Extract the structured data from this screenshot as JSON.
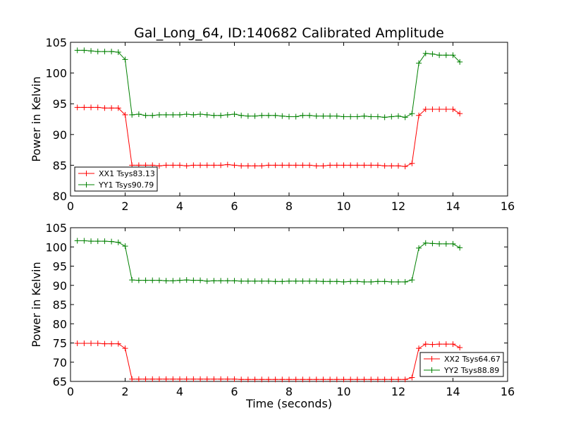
{
  "chart_data": [
    {
      "type": "line",
      "title": "Gal_Long_64, ID:140682 Calibrated Amplitude",
      "xlabel": "",
      "ylabel": "Power in Kelvin",
      "xlim": [
        0,
        16
      ],
      "ylim": [
        80,
        105
      ],
      "xticks": [
        0,
        2,
        4,
        6,
        8,
        10,
        12,
        14,
        16
      ],
      "yticks": [
        80,
        85,
        90,
        95,
        100,
        105
      ],
      "legend_position": "lower-left",
      "x": [
        0.25,
        0.5,
        0.75,
        1.0,
        1.25,
        1.5,
        1.75,
        2.0,
        2.25,
        2.5,
        2.75,
        3.0,
        3.25,
        3.5,
        3.75,
        4.0,
        4.25,
        4.5,
        4.75,
        5.0,
        5.25,
        5.5,
        5.75,
        6.0,
        6.25,
        6.5,
        6.75,
        7.0,
        7.25,
        7.5,
        7.75,
        8.0,
        8.25,
        8.5,
        8.75,
        9.0,
        9.25,
        9.5,
        9.75,
        10.0,
        10.25,
        10.5,
        10.75,
        11.0,
        11.25,
        11.5,
        11.75,
        12.0,
        12.25,
        12.5,
        12.75,
        13.0,
        13.25,
        13.5,
        13.75,
        14.0,
        14.25
      ],
      "series": [
        {
          "name": "XX1 Tsys83.13",
          "color": "#ff0000",
          "values": [
            94.4,
            94.4,
            94.4,
            94.4,
            94.3,
            94.3,
            94.3,
            93.2,
            85.0,
            85.0,
            85.0,
            85.0,
            84.9,
            85.0,
            85.0,
            85.0,
            84.9,
            85.0,
            85.0,
            85.0,
            85.0,
            85.0,
            85.1,
            85.0,
            84.9,
            84.9,
            84.9,
            84.9,
            85.0,
            85.0,
            85.0,
            85.0,
            85.0,
            85.0,
            85.0,
            84.9,
            84.9,
            85.0,
            85.0,
            85.0,
            85.0,
            85.0,
            85.0,
            85.0,
            85.0,
            84.9,
            84.9,
            84.9,
            84.8,
            85.3,
            93.1,
            94.1,
            94.1,
            94.1,
            94.1,
            94.1,
            93.4
          ]
        },
        {
          "name": "YY1 Tsys90.79",
          "color": "#008000",
          "values": [
            103.7,
            103.7,
            103.6,
            103.5,
            103.5,
            103.5,
            103.4,
            102.2,
            93.2,
            93.3,
            93.1,
            93.1,
            93.2,
            93.2,
            93.2,
            93.2,
            93.3,
            93.2,
            93.3,
            93.2,
            93.1,
            93.1,
            93.2,
            93.3,
            93.1,
            93.0,
            93.0,
            93.1,
            93.1,
            93.1,
            93.0,
            92.9,
            92.9,
            93.1,
            93.1,
            93.0,
            93.0,
            93.0,
            93.0,
            92.9,
            92.9,
            92.9,
            93.0,
            92.9,
            92.9,
            92.8,
            92.9,
            93.0,
            92.8,
            93.4,
            101.6,
            103.2,
            103.1,
            102.9,
            102.9,
            102.9,
            101.8
          ]
        }
      ]
    },
    {
      "type": "line",
      "title": "",
      "xlabel": "Time (seconds)",
      "ylabel": "Power in Kelvin",
      "xlim": [
        0,
        16
      ],
      "ylim": [
        65,
        105
      ],
      "xticks": [
        0,
        2,
        4,
        6,
        8,
        10,
        12,
        14,
        16
      ],
      "yticks": [
        65,
        70,
        75,
        80,
        85,
        90,
        95,
        100,
        105
      ],
      "legend_position": "lower-right",
      "x": [
        0.25,
        0.5,
        0.75,
        1.0,
        1.25,
        1.5,
        1.75,
        2.0,
        2.25,
        2.5,
        2.75,
        3.0,
        3.25,
        3.5,
        3.75,
        4.0,
        4.25,
        4.5,
        4.75,
        5.0,
        5.25,
        5.5,
        5.75,
        6.0,
        6.25,
        6.5,
        6.75,
        7.0,
        7.25,
        7.5,
        7.75,
        8.0,
        8.25,
        8.5,
        8.75,
        9.0,
        9.25,
        9.5,
        9.75,
        10.0,
        10.25,
        10.5,
        10.75,
        11.0,
        11.25,
        11.5,
        11.75,
        12.0,
        12.25,
        12.5,
        12.75,
        13.0,
        13.25,
        13.5,
        13.75,
        14.0,
        14.25
      ],
      "series": [
        {
          "name": "XX2 Tsys64.67",
          "color": "#ff0000",
          "values": [
            74.9,
            74.9,
            74.9,
            74.9,
            74.8,
            74.8,
            74.8,
            73.6,
            65.6,
            65.6,
            65.6,
            65.6,
            65.6,
            65.6,
            65.6,
            65.6,
            65.6,
            65.6,
            65.6,
            65.6,
            65.6,
            65.6,
            65.6,
            65.6,
            65.5,
            65.5,
            65.5,
            65.5,
            65.5,
            65.5,
            65.5,
            65.5,
            65.5,
            65.5,
            65.5,
            65.5,
            65.5,
            65.5,
            65.5,
            65.5,
            65.5,
            65.5,
            65.5,
            65.5,
            65.5,
            65.5,
            65.5,
            65.5,
            65.5,
            66.0,
            73.6,
            74.7,
            74.6,
            74.7,
            74.7,
            74.7,
            73.8
          ]
        },
        {
          "name": "YY2 Tsys88.89",
          "color": "#008000",
          "values": [
            101.6,
            101.6,
            101.5,
            101.5,
            101.5,
            101.4,
            101.2,
            100.2,
            91.4,
            91.3,
            91.3,
            91.3,
            91.3,
            91.2,
            91.2,
            91.3,
            91.4,
            91.3,
            91.3,
            91.1,
            91.2,
            91.2,
            91.2,
            91.2,
            91.1,
            91.1,
            91.1,
            91.1,
            91.1,
            91.0,
            91.0,
            91.1,
            91.1,
            91.1,
            91.1,
            91.1,
            91.0,
            91.0,
            91.0,
            90.9,
            91.0,
            91.0,
            90.9,
            90.9,
            91.0,
            91.0,
            90.9,
            90.9,
            90.9,
            91.4,
            99.7,
            101.0,
            100.9,
            100.8,
            100.8,
            100.8,
            99.8
          ]
        }
      ]
    }
  ]
}
